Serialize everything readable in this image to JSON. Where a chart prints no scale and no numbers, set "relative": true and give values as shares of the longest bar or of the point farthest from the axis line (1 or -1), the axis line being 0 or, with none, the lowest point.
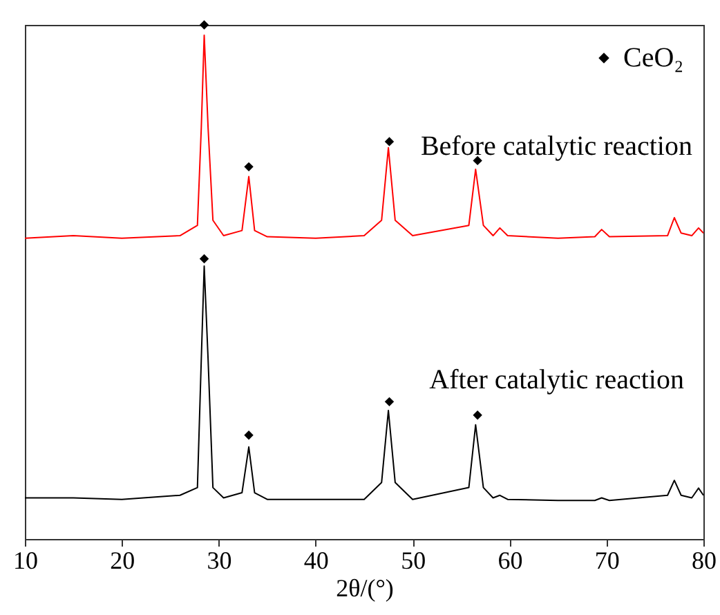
{
  "chart_data": {
    "type": "line",
    "relative": true,
    "xlabel": "2θ/(°)",
    "xlim": [
      10,
      80
    ],
    "xticks": [
      10,
      20,
      30,
      40,
      50,
      60,
      70,
      80
    ],
    "tick_labels": "x",
    "grid": false,
    "legend": "top right",
    "line_style": "solid",
    "marker": "none",
    "series": [
      {
        "name": "Before catalytic reaction",
        "color": "#ff0000",
        "x": [
          10,
          15,
          20,
          26,
          27.8,
          28.2,
          28.5,
          28.9,
          29.4,
          30.5,
          32.4,
          33.1,
          33.7,
          35,
          40,
          45,
          46.8,
          47.5,
          48.2,
          50,
          55.8,
          56.5,
          57.3,
          58.3,
          59,
          59.8,
          65,
          68.8,
          69.5,
          70.3,
          76.3,
          77,
          77.7,
          78.8,
          79.5,
          80
        ],
        "values": [
          0.585,
          0.59,
          0.585,
          0.59,
          0.61,
          0.8,
          0.98,
          0.8,
          0.62,
          0.59,
          0.6,
          0.705,
          0.6,
          0.588,
          0.585,
          0.59,
          0.62,
          0.761,
          0.62,
          0.59,
          0.61,
          0.719,
          0.61,
          0.59,
          0.605,
          0.59,
          0.585,
          0.588,
          0.602,
          0.588,
          0.59,
          0.625,
          0.595,
          0.59,
          0.605,
          0.595
        ]
      },
      {
        "name": "After catalytic reaction",
        "color": "#000000",
        "x": [
          10,
          15,
          20,
          26,
          27.8,
          28.2,
          28.5,
          28.9,
          29.4,
          30.5,
          32.4,
          33.1,
          33.7,
          35,
          40,
          45,
          46.8,
          47.5,
          48.2,
          50,
          55.8,
          56.5,
          57.3,
          58.3,
          59,
          59.8,
          65,
          68.8,
          69.5,
          70.3,
          76.3,
          77,
          77.7,
          78.8,
          79.5,
          80
        ],
        "values": [
          0.08,
          0.08,
          0.077,
          0.085,
          0.1,
          0.35,
          0.531,
          0.35,
          0.1,
          0.08,
          0.09,
          0.179,
          0.09,
          0.077,
          0.077,
          0.077,
          0.11,
          0.25,
          0.11,
          0.077,
          0.1,
          0.222,
          0.1,
          0.08,
          0.085,
          0.077,
          0.075,
          0.075,
          0.08,
          0.075,
          0.085,
          0.114,
          0.085,
          0.08,
          0.099,
          0.085
        ]
      },
      {
        "name": "CeO₂",
        "type": "scatter",
        "marker": "diamond",
        "color": "#000000",
        "x": [
          28.5,
          33.1,
          47.6,
          56.7,
          28.5,
          33.1,
          47.6,
          56.7
        ],
        "values": [
          1.0,
          0.724,
          0.773,
          0.736,
          0.545,
          0.202,
          0.267,
          0.241
        ]
      }
    ]
  }
}
